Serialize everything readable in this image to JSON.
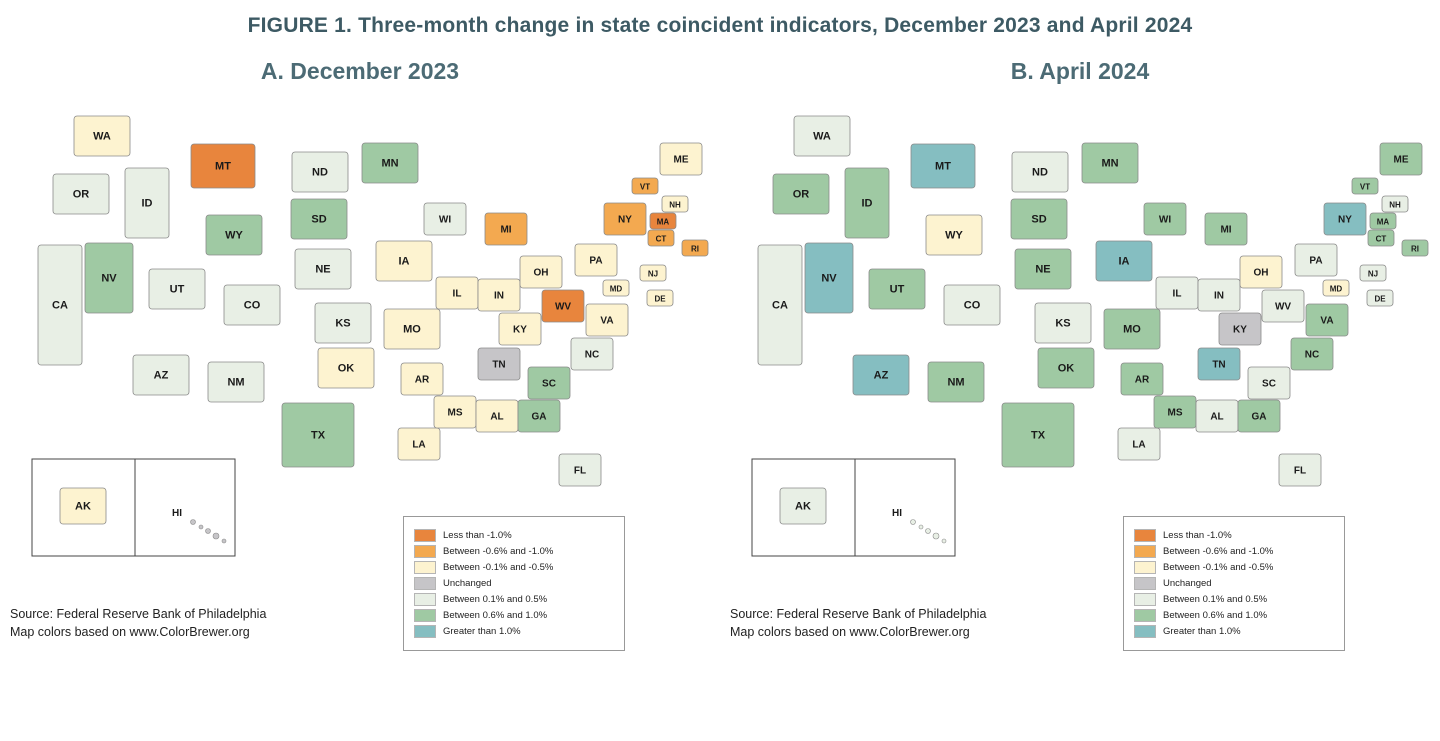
{
  "figure_title": "FIGURE 1. Three-month change in state coincident indicators, December 2023 and April 2024",
  "panels": [
    {
      "id": "A",
      "title": "A. December 2023",
      "source_line1": "Source: Federal Reserve Bank of Philadelphia",
      "source_line2": "Map colors based on www.ColorBrewer.org"
    },
    {
      "id": "B",
      "title": "B. April 2024",
      "source_line1": "Source: Federal Reserve Bank of Philadelphia",
      "source_line2": "Map colors based on www.ColorBrewer.org"
    }
  ],
  "legend": {
    "items": [
      {
        "label": "Less than -1.0%",
        "color": "#e8853d"
      },
      {
        "label": "Between -0.6% and -1.0%",
        "color": "#f3a950"
      },
      {
        "label": "Between -0.1% and -0.5%",
        "color": "#fdf3d0"
      },
      {
        "label": "Unchanged",
        "color": "#c6c5c8"
      },
      {
        "label": "Between 0.1% and 0.5%",
        "color": "#e8efe5"
      },
      {
        "label": "Between 0.6% and 1.0%",
        "color": "#9fc9a3"
      },
      {
        "label": "Greater than 1.0%",
        "color": "#85bec1"
      }
    ]
  },
  "chart_data": {
    "type": "heatmap",
    "subtype": "choropleth-us-state-map",
    "title": "FIGURE 1. Three-month change in state coincident indicators, December 2023 and April 2024",
    "categories": [
      "Less than -1.0%",
      "Between -0.6% and -1.0%",
      "Between -0.1% and -0.5%",
      "Unchanged",
      "Between 0.1% and 0.5%",
      "Between 0.6% and 1.0%",
      "Greater than 1.0%"
    ],
    "series_names": [
      "December 2023",
      "April 2024"
    ],
    "note": "Per-state category assignments are stored in the states array (dec2023 / apr2024 are indices into categories)."
  },
  "states": [
    {
      "abbr": "WA",
      "dec2023": 2,
      "apr2024": 4
    },
    {
      "abbr": "OR",
      "dec2023": 4,
      "apr2024": 5
    },
    {
      "abbr": "CA",
      "dec2023": 4,
      "apr2024": 4
    },
    {
      "abbr": "NV",
      "dec2023": 5,
      "apr2024": 6
    },
    {
      "abbr": "ID",
      "dec2023": 4,
      "apr2024": 5
    },
    {
      "abbr": "MT",
      "dec2023": 0,
      "apr2024": 6
    },
    {
      "abbr": "WY",
      "dec2023": 5,
      "apr2024": 2
    },
    {
      "abbr": "UT",
      "dec2023": 4,
      "apr2024": 5
    },
    {
      "abbr": "CO",
      "dec2023": 4,
      "apr2024": 4
    },
    {
      "abbr": "AZ",
      "dec2023": 4,
      "apr2024": 6
    },
    {
      "abbr": "NM",
      "dec2023": 4,
      "apr2024": 5
    },
    {
      "abbr": "ND",
      "dec2023": 4,
      "apr2024": 4
    },
    {
      "abbr": "SD",
      "dec2023": 5,
      "apr2024": 5
    },
    {
      "abbr": "NE",
      "dec2023": 4,
      "apr2024": 5
    },
    {
      "abbr": "KS",
      "dec2023": 4,
      "apr2024": 4
    },
    {
      "abbr": "OK",
      "dec2023": 2,
      "apr2024": 5
    },
    {
      "abbr": "TX",
      "dec2023": 5,
      "apr2024": 5
    },
    {
      "abbr": "MN",
      "dec2023": 5,
      "apr2024": 5
    },
    {
      "abbr": "IA",
      "dec2023": 2,
      "apr2024": 6
    },
    {
      "abbr": "MO",
      "dec2023": 2,
      "apr2024": 5
    },
    {
      "abbr": "AR",
      "dec2023": 2,
      "apr2024": 5
    },
    {
      "abbr": "LA",
      "dec2023": 2,
      "apr2024": 4
    },
    {
      "abbr": "WI",
      "dec2023": 4,
      "apr2024": 5
    },
    {
      "abbr": "IL",
      "dec2023": 2,
      "apr2024": 4
    },
    {
      "abbr": "MI",
      "dec2023": 1,
      "apr2024": 5
    },
    {
      "abbr": "IN",
      "dec2023": 2,
      "apr2024": 4
    },
    {
      "abbr": "OH",
      "dec2023": 2,
      "apr2024": 2
    },
    {
      "abbr": "KY",
      "dec2023": 2,
      "apr2024": 3
    },
    {
      "abbr": "TN",
      "dec2023": 3,
      "apr2024": 6
    },
    {
      "abbr": "MS",
      "dec2023": 2,
      "apr2024": 5
    },
    {
      "abbr": "AL",
      "dec2023": 2,
      "apr2024": 4
    },
    {
      "abbr": "GA",
      "dec2023": 5,
      "apr2024": 5
    },
    {
      "abbr": "SC",
      "dec2023": 5,
      "apr2024": 4
    },
    {
      "abbr": "NC",
      "dec2023": 4,
      "apr2024": 5
    },
    {
      "abbr": "FL",
      "dec2023": 4,
      "apr2024": 4
    },
    {
      "abbr": "VA",
      "dec2023": 2,
      "apr2024": 5
    },
    {
      "abbr": "WV",
      "dec2023": 0,
      "apr2024": 4
    },
    {
      "abbr": "PA",
      "dec2023": 2,
      "apr2024": 4
    },
    {
      "abbr": "NY",
      "dec2023": 1,
      "apr2024": 6
    },
    {
      "abbr": "VT",
      "dec2023": 1,
      "apr2024": 5
    },
    {
      "abbr": "NH",
      "dec2023": 2,
      "apr2024": 4
    },
    {
      "abbr": "ME",
      "dec2023": 2,
      "apr2024": 5
    },
    {
      "abbr": "MA",
      "dec2023": 0,
      "apr2024": 5
    },
    {
      "abbr": "CT",
      "dec2023": 1,
      "apr2024": 5
    },
    {
      "abbr": "RI",
      "dec2023": 1,
      "apr2024": 5
    },
    {
      "abbr": "NJ",
      "dec2023": 2,
      "apr2024": 4
    },
    {
      "abbr": "MD",
      "dec2023": 2,
      "apr2024": 2
    },
    {
      "abbr": "DE",
      "dec2023": 2,
      "apr2024": 4
    },
    {
      "abbr": "AK",
      "dec2023": 2,
      "apr2024": 4
    },
    {
      "abbr": "HI",
      "dec2023": 3,
      "apr2024": 4
    }
  ]
}
